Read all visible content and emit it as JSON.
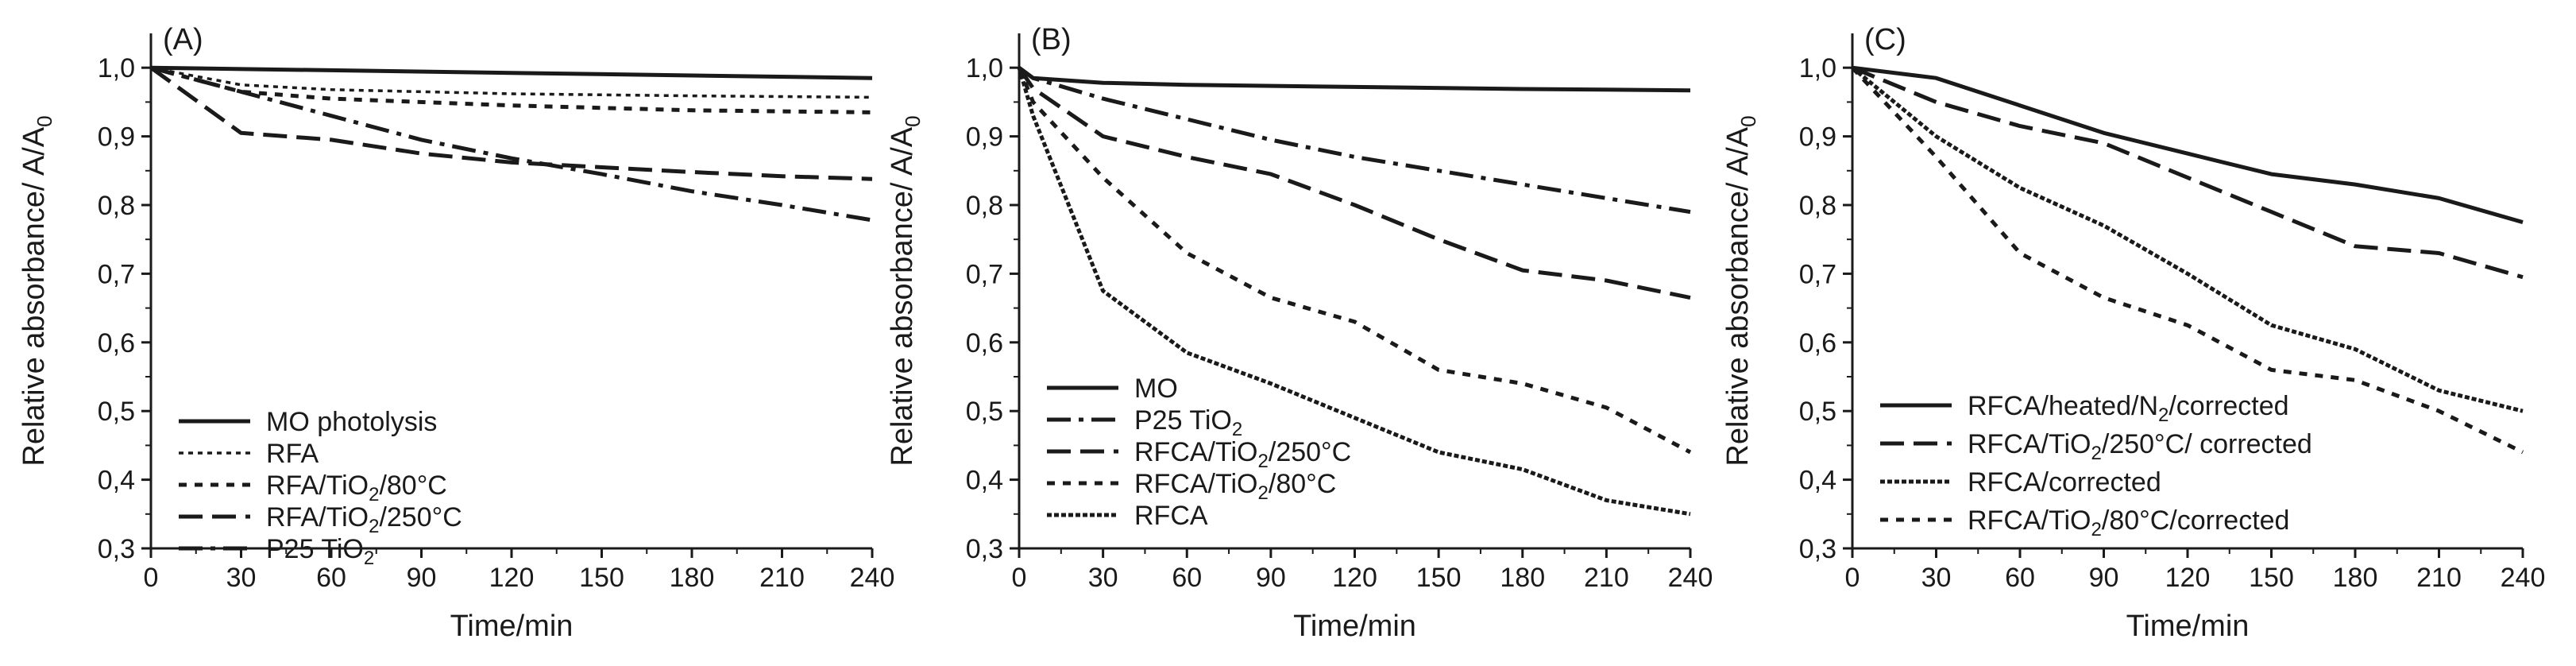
{
  "chart_data": [
    {
      "type": "line",
      "panel_label": "(A)",
      "xlabel": "Time/min",
      "ylabel_parts": [
        "Relative absorbance/ A/A",
        "0"
      ],
      "xlim": [
        0,
        240
      ],
      "ylim": [
        0.3,
        1.05
      ],
      "x_ticks": [
        0,
        30,
        60,
        90,
        120,
        150,
        180,
        210,
        240
      ],
      "x_tick_labels": [
        "0",
        "30",
        "60",
        "90",
        "120",
        "150",
        "180",
        "210",
        "240"
      ],
      "y_ticks": [
        0.3,
        0.4,
        0.5,
        0.6,
        0.7,
        0.8,
        0.9,
        1.0
      ],
      "y_tick_labels": [
        "0,3",
        "0,4",
        "0,5",
        "0,6",
        "0,7",
        "0,8",
        "0,9",
        "1,0"
      ],
      "legend_position": "bottom-left",
      "series": [
        {
          "name": "MO photolysis",
          "legend_parts": [
            [
              "MO photolysis",
              false
            ]
          ],
          "style": "solid",
          "x": [
            0,
            240
          ],
          "values": [
            1.0,
            0.985
          ]
        },
        {
          "name": "RFA",
          "legend_parts": [
            [
              "RFA",
              false
            ]
          ],
          "style": "dotted",
          "x": [
            0,
            30,
            60,
            120,
            180,
            240
          ],
          "values": [
            1.0,
            0.975,
            0.968,
            0.962,
            0.959,
            0.957
          ]
        },
        {
          "name": "RFA/TiO2/80°C",
          "legend_parts": [
            [
              "RFA/TiO",
              false
            ],
            [
              "2",
              true
            ],
            [
              "/80°C",
              false
            ]
          ],
          "style": "dashed-short",
          "x": [
            0,
            30,
            60,
            120,
            180,
            240
          ],
          "values": [
            1.0,
            0.965,
            0.955,
            0.945,
            0.938,
            0.935
          ]
        },
        {
          "name": "RFA/TiO2/250°C",
          "legend_parts": [
            [
              "RFA/TiO",
              false
            ],
            [
              "2",
              true
            ],
            [
              "/250°C",
              false
            ]
          ],
          "style": "dashed-long",
          "x": [
            0,
            30,
            60,
            90,
            120,
            150,
            180,
            210,
            240
          ],
          "values": [
            1.0,
            0.905,
            0.895,
            0.875,
            0.862,
            0.855,
            0.848,
            0.842,
            0.838
          ]
        },
        {
          "name": "P25 TiO2",
          "legend_parts": [
            [
              "P25 TiO",
              false
            ],
            [
              "2",
              true
            ]
          ],
          "style": "dash-dot",
          "x": [
            0,
            30,
            60,
            90,
            120,
            150,
            180,
            210,
            240
          ],
          "values": [
            1.0,
            0.965,
            0.93,
            0.895,
            0.868,
            0.845,
            0.82,
            0.8,
            0.778
          ]
        }
      ]
    },
    {
      "type": "line",
      "panel_label": "(B)",
      "xlabel": "Time/min",
      "ylabel_parts": [
        "Relative absorbance/ A/A",
        "0"
      ],
      "xlim": [
        0,
        240
      ],
      "ylim": [
        0.3,
        1.05
      ],
      "x_ticks": [
        0,
        30,
        60,
        90,
        120,
        150,
        180,
        210,
        240
      ],
      "x_tick_labels": [
        "0",
        "30",
        "60",
        "90",
        "120",
        "150",
        "180",
        "210",
        "240"
      ],
      "y_ticks": [
        0.3,
        0.4,
        0.5,
        0.6,
        0.7,
        0.8,
        0.9,
        1.0
      ],
      "y_tick_labels": [
        "0,3",
        "0,4",
        "0,5",
        "0,6",
        "0,7",
        "0,8",
        "0,9",
        "1,0"
      ],
      "legend_position": "bottom-left",
      "series": [
        {
          "name": "MO",
          "legend_parts": [
            [
              "MO",
              false
            ]
          ],
          "style": "solid",
          "x": [
            0,
            5,
            30,
            60,
            120,
            180,
            240
          ],
          "values": [
            1.0,
            0.985,
            0.978,
            0.975,
            0.972,
            0.969,
            0.967
          ]
        },
        {
          "name": "P25 TiO2",
          "legend_parts": [
            [
              "P25 TiO",
              false
            ],
            [
              "2",
              true
            ]
          ],
          "style": "dash-dot",
          "x": [
            0,
            5,
            30,
            60,
            90,
            120,
            150,
            180,
            210,
            240
          ],
          "values": [
            1.0,
            0.985,
            0.955,
            0.925,
            0.895,
            0.87,
            0.85,
            0.83,
            0.81,
            0.79
          ]
        },
        {
          "name": "RFCA/TiO2/250°C",
          "legend_parts": [
            [
              "RFCA/TiO",
              false
            ],
            [
              "2",
              true
            ],
            [
              "/250°C",
              false
            ]
          ],
          "style": "dashed-long",
          "x": [
            0,
            5,
            30,
            60,
            90,
            120,
            150,
            180,
            210,
            240
          ],
          "values": [
            1.0,
            0.97,
            0.9,
            0.87,
            0.845,
            0.8,
            0.75,
            0.705,
            0.69,
            0.665
          ]
        },
        {
          "name": "RFCA/TiO2/80°C",
          "legend_parts": [
            [
              "RFCA/TiO",
              false
            ],
            [
              "2",
              true
            ],
            [
              "/80°C",
              false
            ]
          ],
          "style": "dashed-short",
          "x": [
            0,
            5,
            30,
            60,
            90,
            120,
            150,
            180,
            210,
            240
          ],
          "values": [
            1.0,
            0.95,
            0.84,
            0.73,
            0.665,
            0.63,
            0.56,
            0.54,
            0.505,
            0.44
          ]
        },
        {
          "name": "RFCA",
          "legend_parts": [
            [
              "RFCA",
              false
            ]
          ],
          "style": "dotted-heavy",
          "x": [
            0,
            5,
            30,
            60,
            90,
            120,
            150,
            180,
            210,
            240
          ],
          "values": [
            1.0,
            0.93,
            0.675,
            0.585,
            0.54,
            0.49,
            0.44,
            0.415,
            0.37,
            0.35
          ]
        }
      ]
    },
    {
      "type": "line",
      "panel_label": "(C)",
      "xlabel": "Time/min",
      "ylabel_parts": [
        "Relative absorbance/ A/A",
        "0"
      ],
      "xlim": [
        0,
        240
      ],
      "ylim": [
        0.3,
        1.05
      ],
      "x_ticks": [
        0,
        30,
        60,
        90,
        120,
        150,
        180,
        210,
        240
      ],
      "x_tick_labels": [
        "0",
        "30",
        "60",
        "90",
        "120",
        "150",
        "180",
        "210",
        "240"
      ],
      "y_ticks": [
        0.3,
        0.4,
        0.5,
        0.6,
        0.7,
        0.8,
        0.9,
        1.0
      ],
      "y_tick_labels": [
        "0,3",
        "0,4",
        "0,5",
        "0,6",
        "0,7",
        "0,8",
        "0,9",
        "1,0"
      ],
      "legend_position": "bottom-left",
      "series": [
        {
          "name": "RFCA/heated/N2/corrected",
          "legend_parts": [
            [
              "RFCA/heated/N",
              false
            ],
            [
              "2",
              true
            ],
            [
              "/corrected",
              false
            ]
          ],
          "style": "solid",
          "x": [
            0,
            30,
            60,
            90,
            120,
            150,
            180,
            210,
            240
          ],
          "values": [
            1.0,
            0.985,
            0.945,
            0.905,
            0.875,
            0.845,
            0.83,
            0.81,
            0.775
          ]
        },
        {
          "name": "RFCA/TiO2/250°C/ corrected",
          "legend_parts": [
            [
              "RFCA/TiO",
              false
            ],
            [
              "2",
              true
            ],
            [
              "/250°C/ corrected",
              false
            ]
          ],
          "style": "dashed-long",
          "x": [
            0,
            30,
            60,
            90,
            120,
            150,
            180,
            210,
            240
          ],
          "values": [
            1.0,
            0.95,
            0.915,
            0.89,
            0.84,
            0.79,
            0.74,
            0.73,
            0.695
          ]
        },
        {
          "name": "RFCA/corrected",
          "legend_parts": [
            [
              "RFCA/corrected",
              false
            ]
          ],
          "style": "dotted-heavy",
          "x": [
            0,
            30,
            60,
            90,
            120,
            150,
            180,
            210,
            240
          ],
          "values": [
            1.0,
            0.9,
            0.825,
            0.77,
            0.7,
            0.625,
            0.59,
            0.53,
            0.5
          ]
        },
        {
          "name": "RFCA/TiO2/80°C/corrected",
          "legend_parts": [
            [
              "RFCA/TiO",
              false
            ],
            [
              "2",
              true
            ],
            [
              "/80°C/corrected",
              false
            ]
          ],
          "style": "dashed-short",
          "x": [
            0,
            30,
            60,
            90,
            120,
            150,
            180,
            210,
            240
          ],
          "values": [
            1.0,
            0.87,
            0.73,
            0.665,
            0.625,
            0.56,
            0.545,
            0.5,
            0.44
          ]
        }
      ]
    }
  ]
}
